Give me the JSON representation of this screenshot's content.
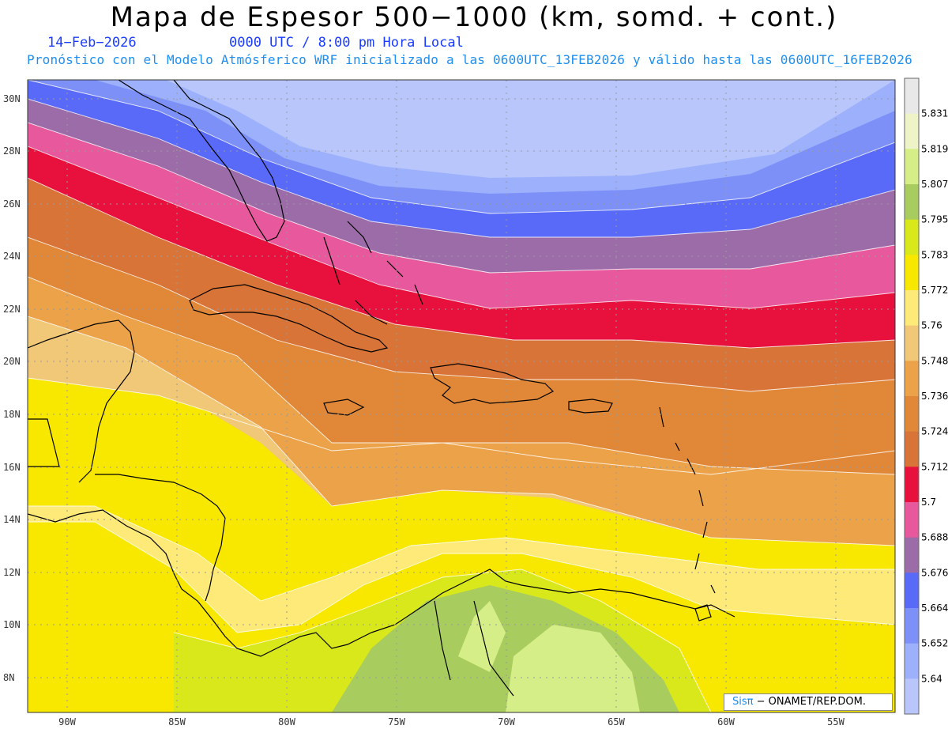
{
  "header": {
    "title": "Mapa de Espesor 500−1000 (km, somd. + cont.)",
    "date": "14−Feb−2026",
    "time": "0000 UTC / 8:00 pm Hora Local",
    "model_info": "Pronóstico con el Modelo Atmósferico WRF inicializado a las 0600UTC_13FEB2026 y válido hasta las  0600UTC_16FEB2026"
  },
  "map": {
    "lat_labels": [
      "30N",
      "28N",
      "26N",
      "24N",
      "22N",
      "20N",
      "18N",
      "16N",
      "14N",
      "12N",
      "10N",
      "8N"
    ],
    "lon_labels": [
      "90W",
      "85W",
      "80W",
      "75W",
      "70W",
      "65W",
      "60W",
      "55W"
    ],
    "grid": true
  },
  "colorbar": {
    "values": [
      "5.831",
      "5.819",
      "5.807",
      "5.795",
      "5.783",
      "5.772",
      "5.76",
      "5.748",
      "5.736",
      "5.724",
      "5.712",
      "5.7",
      "5.688",
      "5.676",
      "5.664",
      "5.652",
      "5.64"
    ],
    "colors": [
      "#e8e8e8",
      "#eef3c8",
      "#d6ee88",
      "#a8cc5e",
      "#d8e81a",
      "#f8e800",
      "#fdea78",
      "#f0c878",
      "#eca248",
      "#e08838",
      "#d87438",
      "#e8103c",
      "#e8589c",
      "#9c6ca8",
      "#5a6af8",
      "#7c90f8",
      "#9cb0fc",
      "#b8c6fc"
    ]
  },
  "credit": {
    "brand": "Sisπ",
    "text": " − ONAMET/REP.DOM."
  }
}
